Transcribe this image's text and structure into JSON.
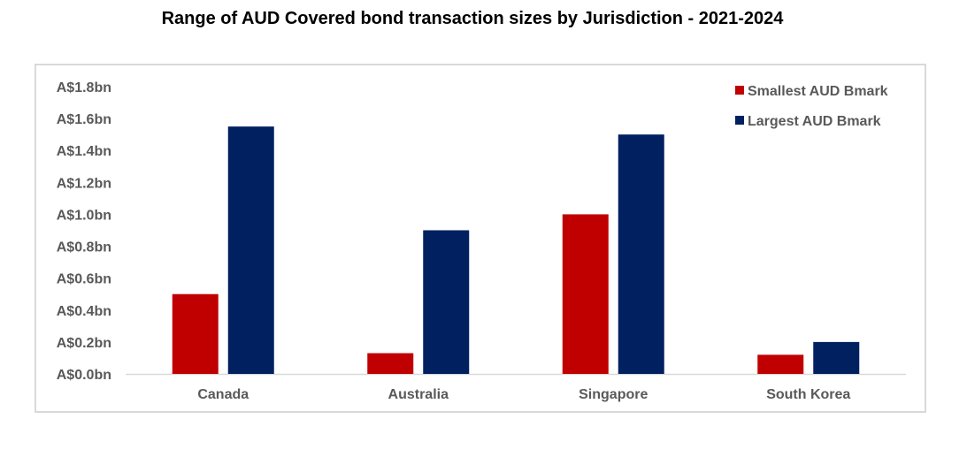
{
  "chart_data": {
    "type": "bar",
    "title": "Range of AUD Covered bond transaction sizes by Jurisdiction - 2021-2024",
    "categories": [
      "Canada",
      "Australia",
      "Singapore",
      "South Korea"
    ],
    "series": [
      {
        "name": "Smallest AUD Bmark",
        "color": "#c00000",
        "values": [
          0.5,
          0.13,
          1.0,
          0.12
        ]
      },
      {
        "name": "Largest AUD Bmark",
        "color": "#002060",
        "values": [
          1.55,
          0.9,
          1.5,
          0.2
        ]
      }
    ],
    "yticks": [
      "A$0.0bn",
      "A$0.2bn",
      "A$0.4bn",
      "A$0.6bn",
      "A$0.8bn",
      "A$1.0bn",
      "A$1.2bn",
      "A$1.4bn",
      "A$1.6bn",
      "A$1.8bn"
    ],
    "ylim": [
      0,
      1.8
    ],
    "grid": false,
    "legend": "top-right"
  }
}
